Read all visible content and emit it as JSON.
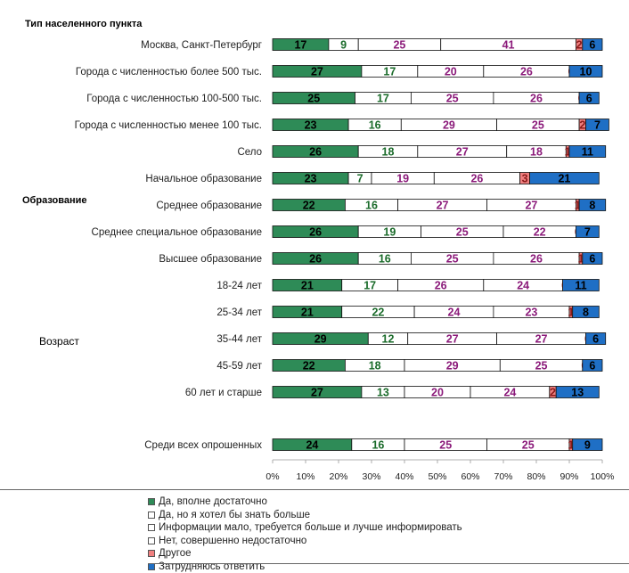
{
  "chart_data": {
    "type": "bar",
    "stacked": true,
    "orientation": "horizontal",
    "percent_axis": true,
    "categories": [
      "Москва, Санкт-Петербург",
      "Города с численностью более 500 тыс.",
      "Города с численностью 100-500 тыс.",
      "Города с численностью менее 100 тыс.",
      "Село",
      "Начальное образование",
      "Среднее образование",
      "Среднее специальное образование",
      "Высшее образование",
      "18-24 лет",
      "25-34 лет",
      "35-44 лет",
      "45-59 лет",
      "60 лет и старше",
      "Среди всех опрошенных"
    ],
    "groups": [
      {
        "label": "Тип населенного пункта",
        "bold": true
      },
      {
        "label": "Образование",
        "bold": true
      },
      {
        "label": "Возраст",
        "bold": false
      }
    ],
    "series": [
      {
        "name": "Да, вполне достаточно",
        "color": "#2e8b57",
        "text_color": "#000000",
        "values": [
          17,
          27,
          25,
          23,
          26,
          23,
          22,
          26,
          26,
          21,
          21,
          29,
          22,
          27,
          24
        ]
      },
      {
        "name": "Да, но я хотел бы знать больше",
        "color": "#ffffff",
        "text_color": "#1a6b2a",
        "values": [
          9,
          17,
          17,
          16,
          18,
          7,
          16,
          19,
          16,
          17,
          22,
          12,
          18,
          13,
          16
        ]
      },
      {
        "name": "Информации мало, требуется больше и лучше информировать",
        "color": "#ffffff",
        "text_color": "#8b1a7a",
        "values": [
          25,
          20,
          25,
          29,
          27,
          19,
          27,
          25,
          25,
          26,
          24,
          27,
          29,
          20,
          25
        ]
      },
      {
        "name": "Нет, совершенно недостаточно",
        "color": "#ffffff",
        "text_color": "#8b1a7a",
        "values": [
          41,
          26,
          26,
          25,
          18,
          26,
          27,
          22,
          26,
          24,
          23,
          27,
          25,
          24,
          25
        ]
      },
      {
        "name": "Другое",
        "color": "#f08080",
        "text_color": "#8b1a1a",
        "values": [
          2,
          0,
          0,
          2,
          1,
          3,
          1,
          0,
          1,
          0,
          1,
          0,
          0,
          2,
          1
        ]
      },
      {
        "name": "Затрудняюсь ответить",
        "color": "#1f6fc5",
        "text_color": "#000000",
        "values": [
          6,
          10,
          6,
          7,
          11,
          21,
          8,
          7,
          6,
          11,
          8,
          6,
          6,
          13,
          9
        ]
      }
    ],
    "x_ticks": [
      "0%",
      "10%",
      "20%",
      "30%",
      "40%",
      "50%",
      "60%",
      "70%",
      "80%",
      "90%",
      "100%"
    ],
    "xlim": [
      0,
      100
    ],
    "legend_placement": "bottom"
  }
}
